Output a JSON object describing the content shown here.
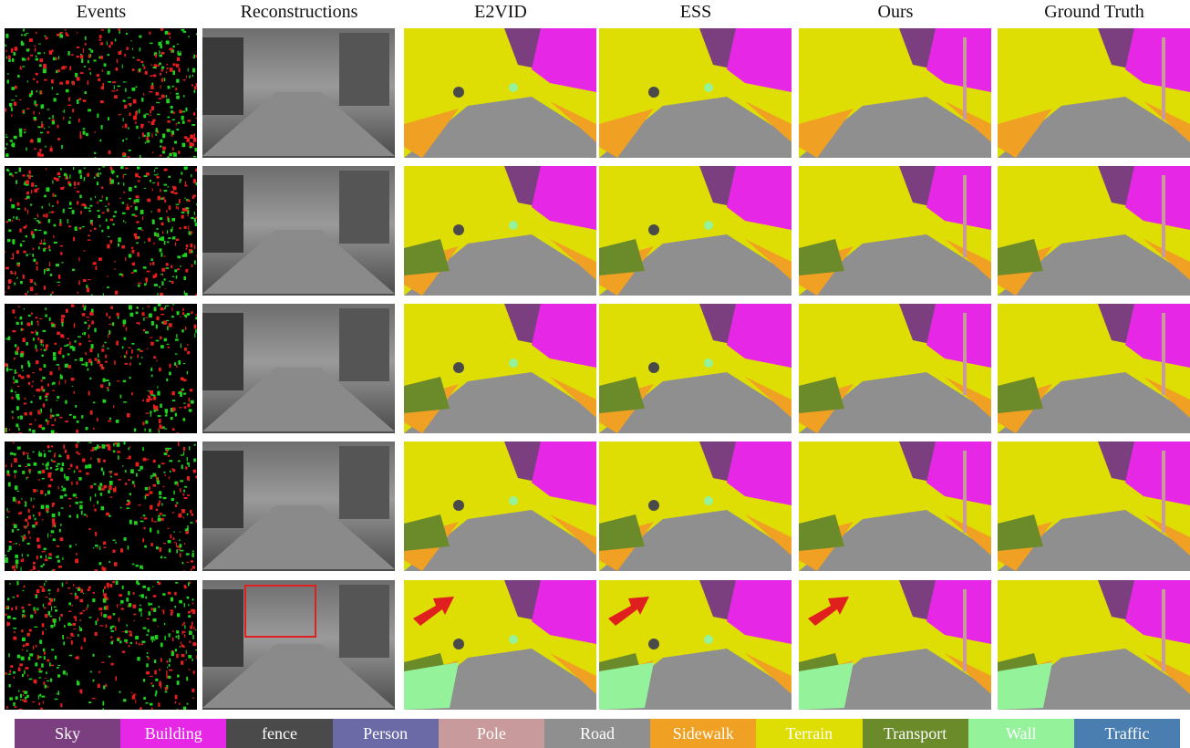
{
  "headers": [
    "Events",
    "Reconstructions",
    "E2VID",
    "ESS",
    "Ours",
    "Ground Truth"
  ],
  "legend": [
    {
      "label": "Sky",
      "color": "#7b3f80"
    },
    {
      "label": "Building",
      "color": "#e628e6"
    },
    {
      "label": "fence",
      "color": "#4a4a4a"
    },
    {
      "label": "Person",
      "color": "#6b6aa6"
    },
    {
      "label": "Pole",
      "color": "#c99a9b"
    },
    {
      "label": "Road",
      "color": "#8f8f8f"
    },
    {
      "label": "Sidewalk",
      "color": "#f0a022"
    },
    {
      "label": "Terrain",
      "color": "#dede05"
    },
    {
      "label": "Transport",
      "color": "#6b8a2a"
    },
    {
      "label": "Wall",
      "color": "#94f29a"
    },
    {
      "label": "Traffic",
      "color": "#4a7db0"
    }
  ]
}
